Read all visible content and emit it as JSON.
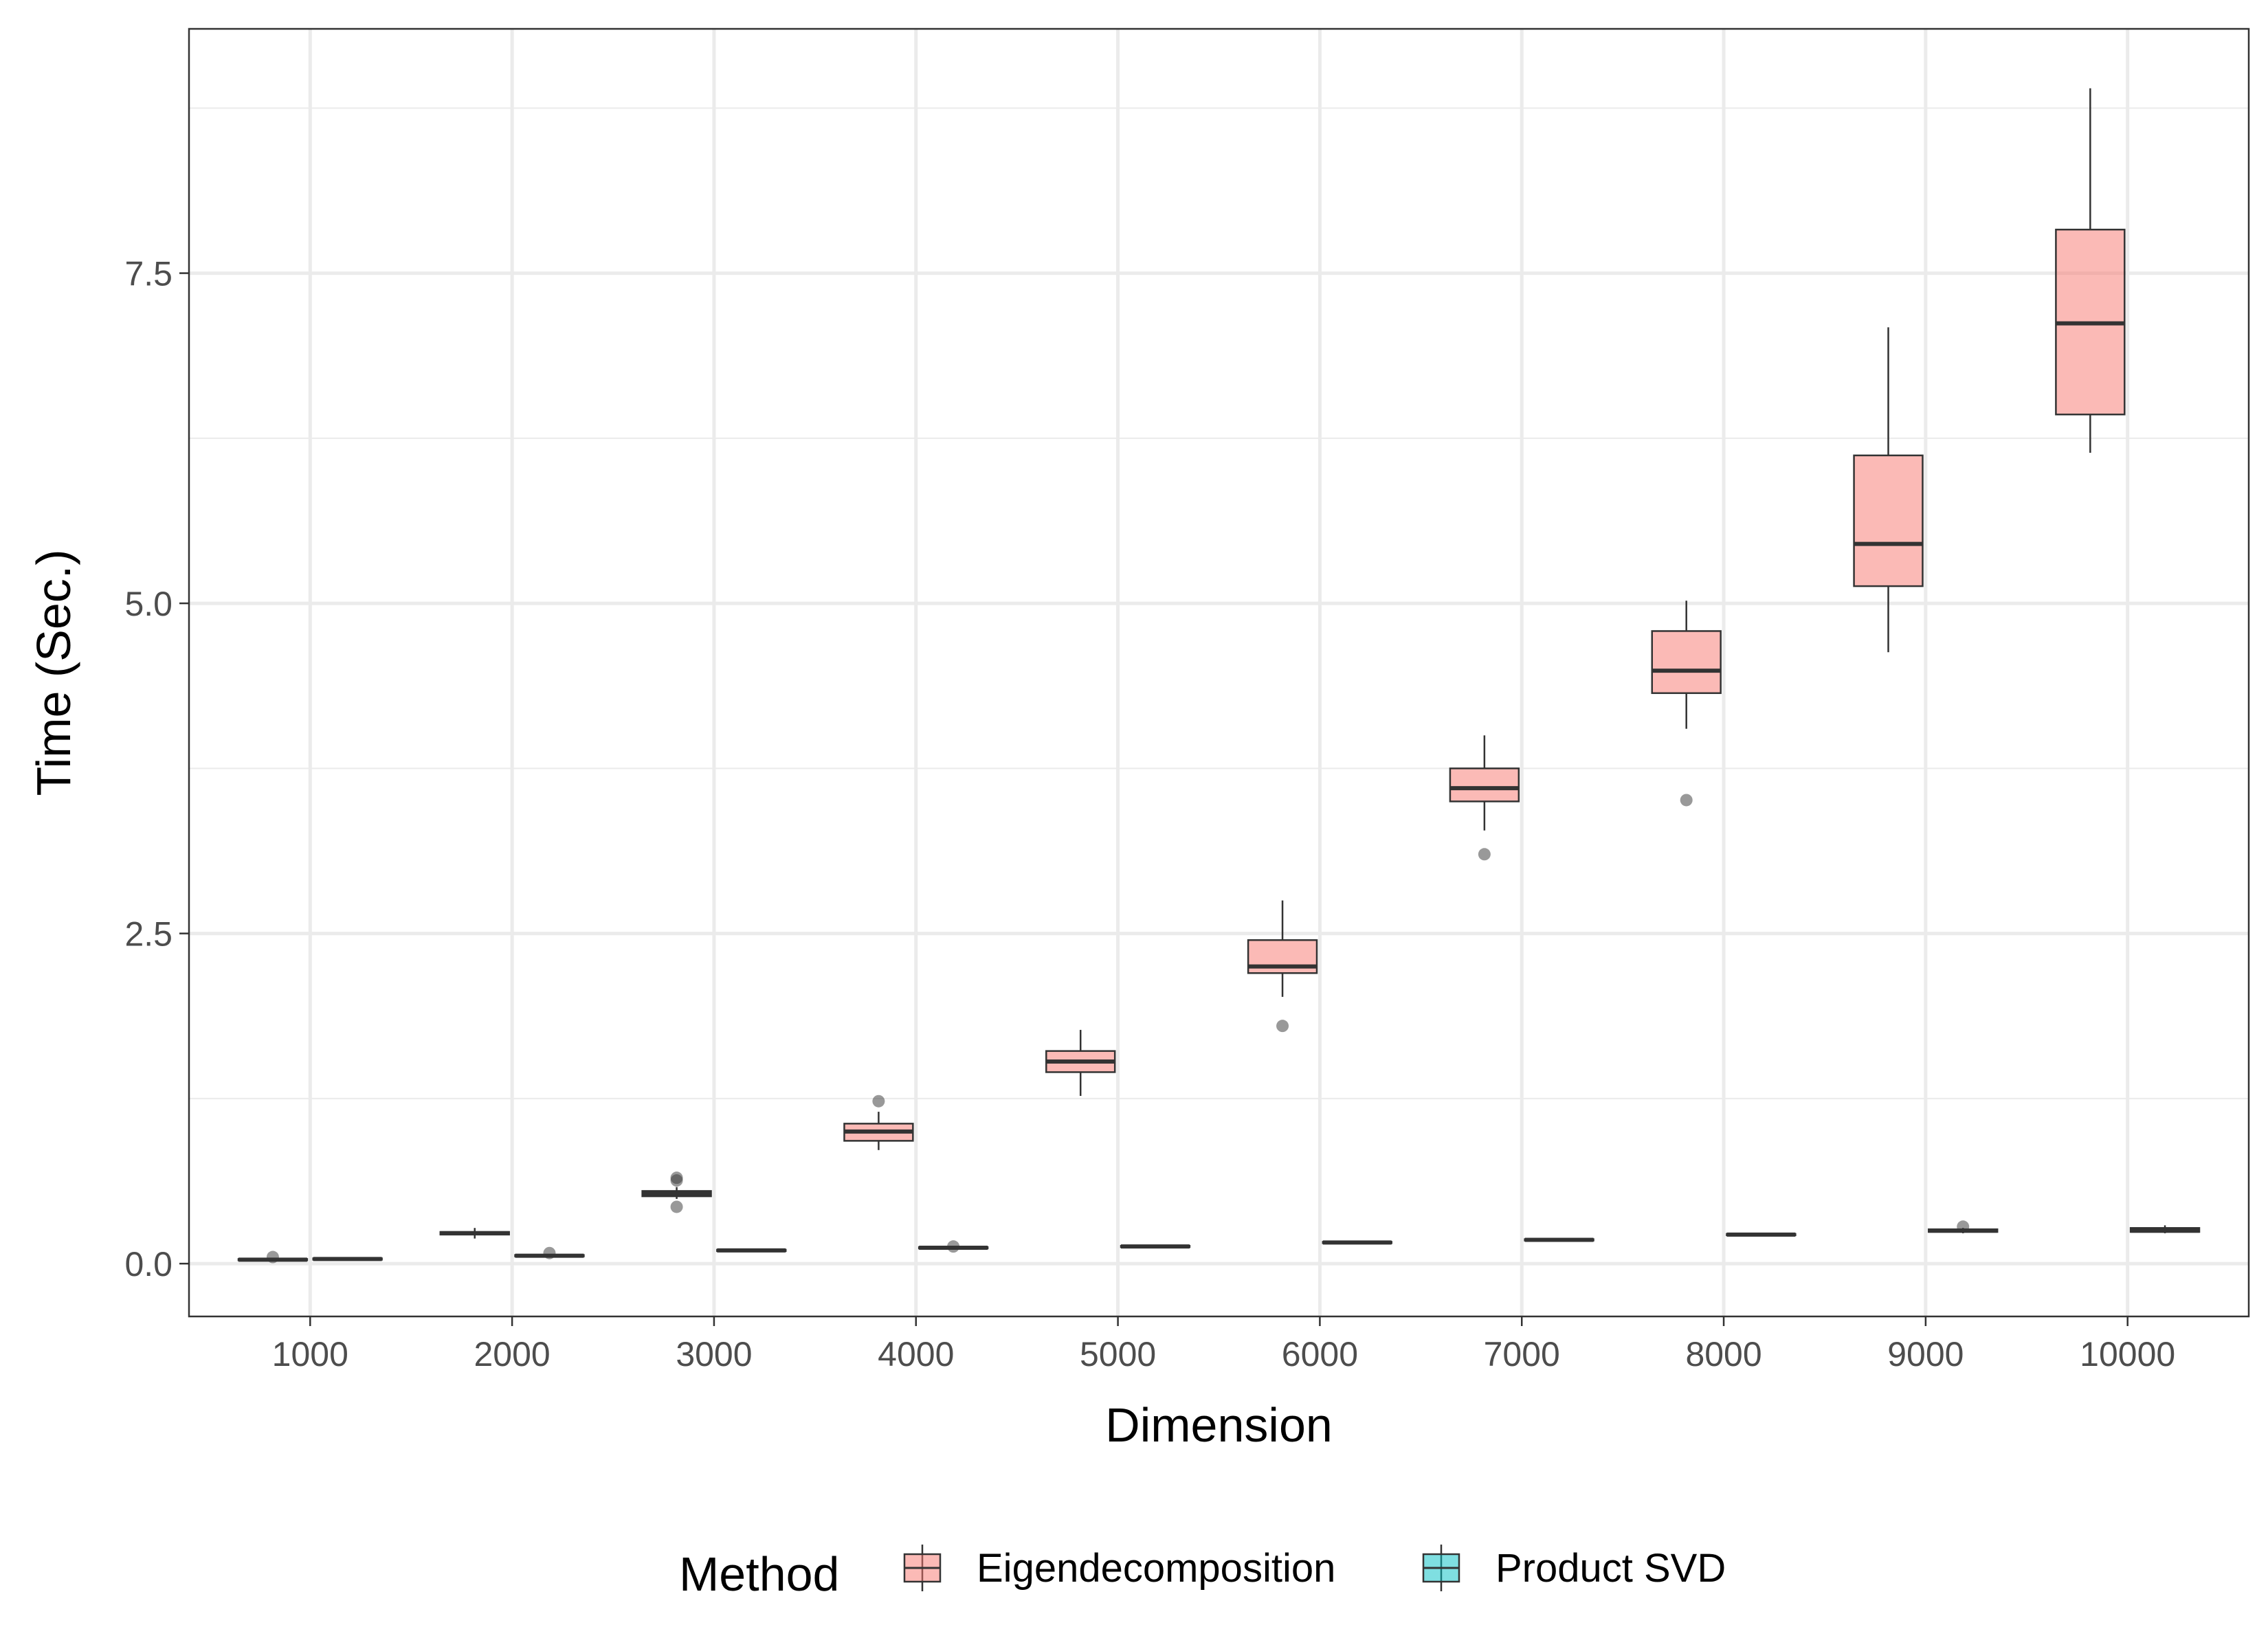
{
  "chart_data": {
    "type": "boxplot",
    "title": "",
    "xlabel": "Dimension",
    "ylabel": "Time (Sec.)",
    "categories": [
      "1000",
      "2000",
      "3000",
      "4000",
      "5000",
      "6000",
      "7000",
      "8000",
      "9000",
      "10000"
    ],
    "yticks": [
      "0.0",
      "2.5",
      "5.0",
      "7.5"
    ],
    "ylim": [
      -0.4,
      9.35
    ],
    "grid": true,
    "legend": {
      "title": "Method",
      "position": "bottom"
    },
    "series": [
      {
        "name": "Eigendecomposition",
        "color": "#F8766D",
        "boxes": [
          {
            "x": "1000",
            "whislo": 0.02,
            "q1": 0.025,
            "med": 0.03,
            "q3": 0.035,
            "whishi": 0.04,
            "outliers": [
              0.05
            ]
          },
          {
            "x": "2000",
            "whislo": 0.19,
            "q1": 0.22,
            "med": 0.23,
            "q3": 0.24,
            "whishi": 0.27,
            "outliers": []
          },
          {
            "x": "3000",
            "whislo": 0.49,
            "q1": 0.51,
            "med": 0.53,
            "q3": 0.55,
            "whishi": 0.58,
            "outliers": [
              0.43,
              0.63,
              0.65
            ]
          },
          {
            "x": "4000",
            "whislo": 0.86,
            "q1": 0.93,
            "med": 1.0,
            "q3": 1.06,
            "whishi": 1.15,
            "outliers": [
              1.23
            ]
          },
          {
            "x": "5000",
            "whislo": 1.27,
            "q1": 1.45,
            "med": 1.53,
            "q3": 1.61,
            "whishi": 1.77,
            "outliers": []
          },
          {
            "x": "6000",
            "whislo": 2.02,
            "q1": 2.2,
            "med": 2.25,
            "q3": 2.45,
            "whishi": 2.75,
            "outliers": [
              1.8
            ]
          },
          {
            "x": "7000",
            "whislo": 3.28,
            "q1": 3.5,
            "med": 3.6,
            "q3": 3.75,
            "whishi": 4.0,
            "outliers": [
              3.1
            ]
          },
          {
            "x": "8000",
            "whislo": 4.05,
            "q1": 4.32,
            "med": 4.49,
            "q3": 4.79,
            "whishi": 5.02,
            "outliers": [
              3.51
            ]
          },
          {
            "x": "9000",
            "whislo": 4.63,
            "q1": 5.13,
            "med": 5.45,
            "q3": 6.12,
            "whishi": 7.09,
            "outliers": []
          },
          {
            "x": "10000",
            "whislo": 6.14,
            "q1": 6.43,
            "med": 7.12,
            "q3": 7.83,
            "whishi": 8.9,
            "outliers": []
          }
        ]
      },
      {
        "name": "Product SVD",
        "color": "#00BFC4",
        "boxes": [
          {
            "x": "1000",
            "whislo": 0.03,
            "q1": 0.03,
            "med": 0.035,
            "q3": 0.04,
            "whishi": 0.04,
            "outliers": []
          },
          {
            "x": "2000",
            "whislo": 0.05,
            "q1": 0.055,
            "med": 0.06,
            "q3": 0.065,
            "whishi": 0.07,
            "outliers": [
              0.08
            ]
          },
          {
            "x": "3000",
            "whislo": 0.09,
            "q1": 0.095,
            "med": 0.1,
            "q3": 0.105,
            "whishi": 0.11,
            "outliers": []
          },
          {
            "x": "4000",
            "whislo": 0.11,
            "q1": 0.115,
            "med": 0.12,
            "q3": 0.125,
            "whishi": 0.13,
            "outliers": [
              0.13
            ]
          },
          {
            "x": "5000",
            "whislo": 0.12,
            "q1": 0.125,
            "med": 0.13,
            "q3": 0.135,
            "whishi": 0.14,
            "outliers": []
          },
          {
            "x": "6000",
            "whislo": 0.15,
            "q1": 0.155,
            "med": 0.16,
            "q3": 0.165,
            "whishi": 0.17,
            "outliers": []
          },
          {
            "x": "7000",
            "whislo": 0.17,
            "q1": 0.175,
            "med": 0.18,
            "q3": 0.185,
            "whishi": 0.19,
            "outliers": []
          },
          {
            "x": "8000",
            "whislo": 0.21,
            "q1": 0.215,
            "med": 0.22,
            "q3": 0.225,
            "whishi": 0.23,
            "outliers": []
          },
          {
            "x": "9000",
            "whislo": 0.23,
            "q1": 0.24,
            "med": 0.25,
            "q3": 0.26,
            "whishi": 0.27,
            "outliers": [
              0.28
            ]
          },
          {
            "x": "10000",
            "whislo": 0.23,
            "q1": 0.24,
            "med": 0.25,
            "q3": 0.27,
            "whishi": 0.29,
            "outliers": []
          }
        ]
      }
    ]
  }
}
